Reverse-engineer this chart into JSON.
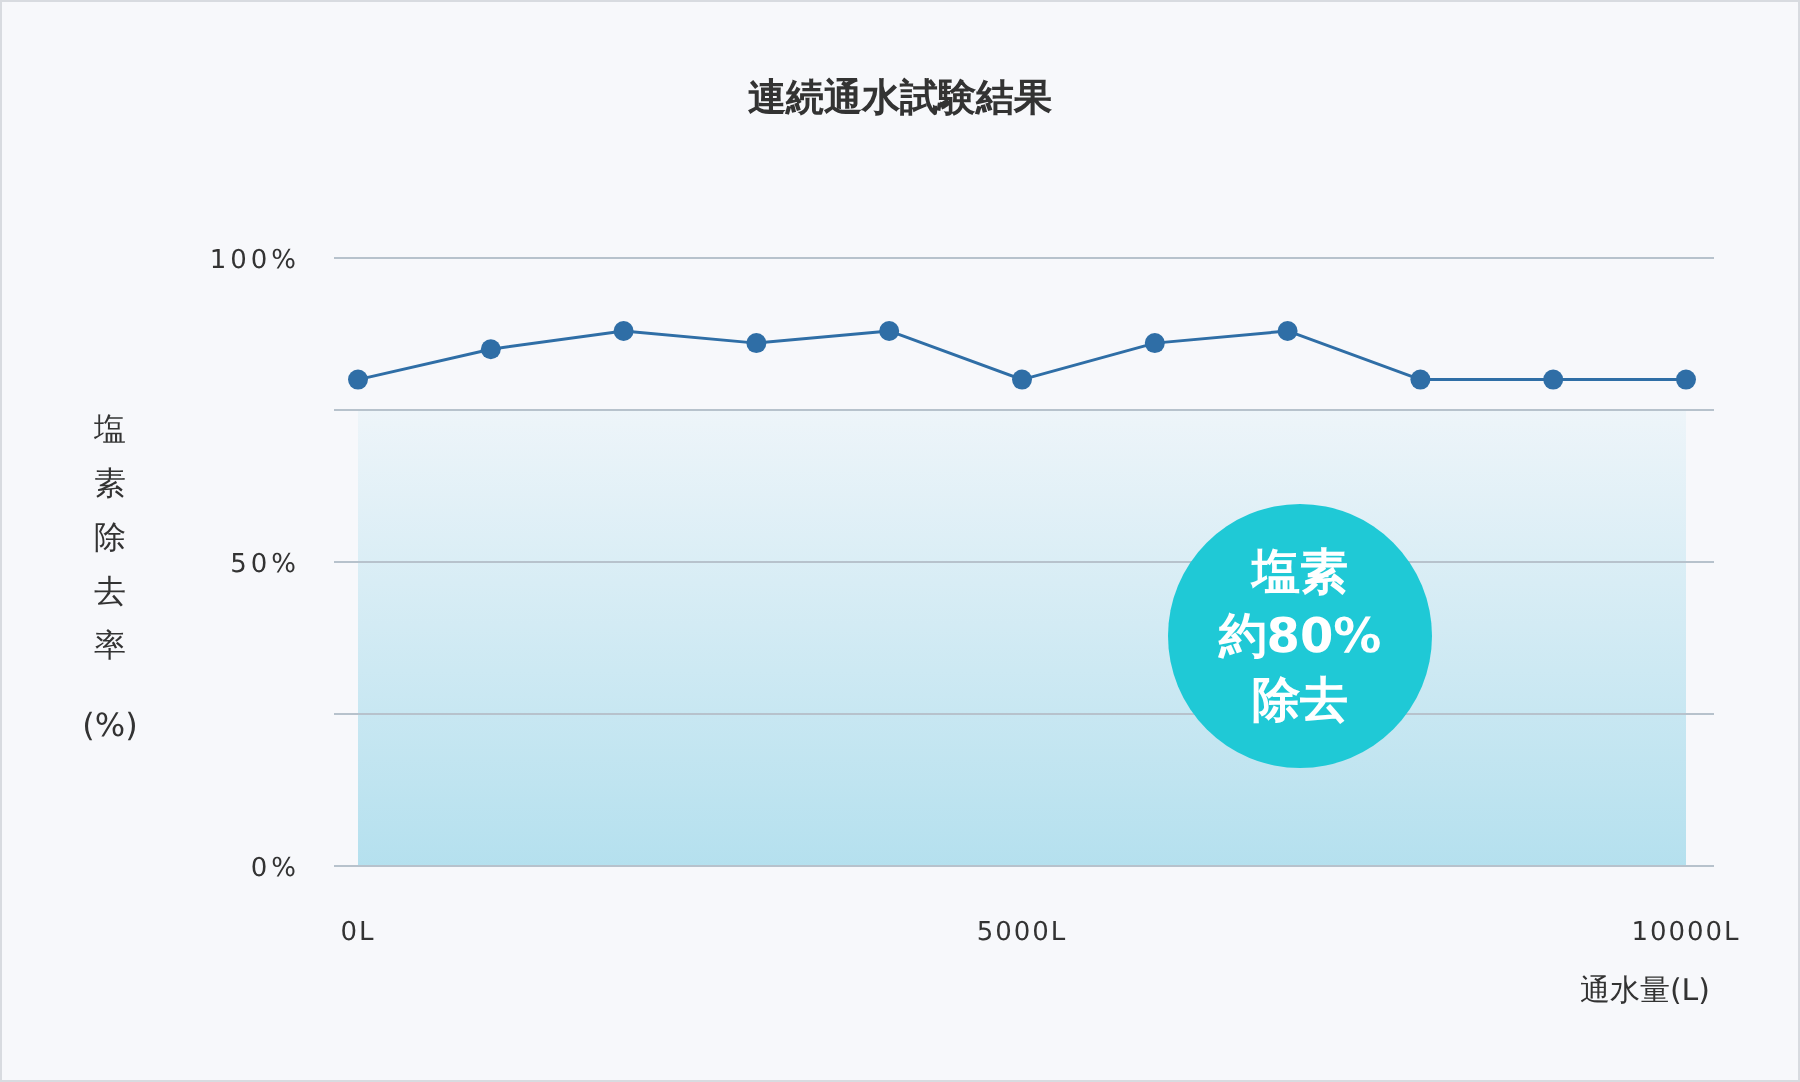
{
  "chart_data": {
    "type": "line",
    "title": "連続通水試験結果",
    "xlabel": "通水量(L)",
    "ylabel": "塩素除去率(%)",
    "x": [
      0,
      1000,
      2000,
      3000,
      4000,
      5000,
      6000,
      7000,
      8000,
      9000,
      10000
    ],
    "series": [
      {
        "color": "#2f6ea6",
        "values": [
          80,
          85,
          88,
          86,
          88,
          80,
          86,
          88,
          80,
          80,
          80
        ]
      }
    ],
    "xlim": [
      0,
      10000
    ],
    "xticks": [
      {
        "value": 0,
        "label": "0L"
      },
      {
        "value": 5000,
        "label": "5000L"
      },
      {
        "value": 10000,
        "label": "10000L"
      }
    ],
    "ylim": [
      0,
      100
    ],
    "yticks": [
      {
        "value": 0,
        "label": "0%"
      },
      {
        "value": 25,
        "label": null
      },
      {
        "value": 50,
        "label": "50%"
      },
      {
        "value": 75,
        "label": null
      },
      {
        "value": 100,
        "label": "100%"
      }
    ],
    "grid": "y",
    "marker": "circle",
    "line_style": "solid",
    "bands": [
      {
        "axis": "y",
        "from": 0,
        "to": 75,
        "color": "#a9dcec"
      }
    ],
    "annotations": [
      "塩素",
      "約80%",
      "除去"
    ]
  }
}
